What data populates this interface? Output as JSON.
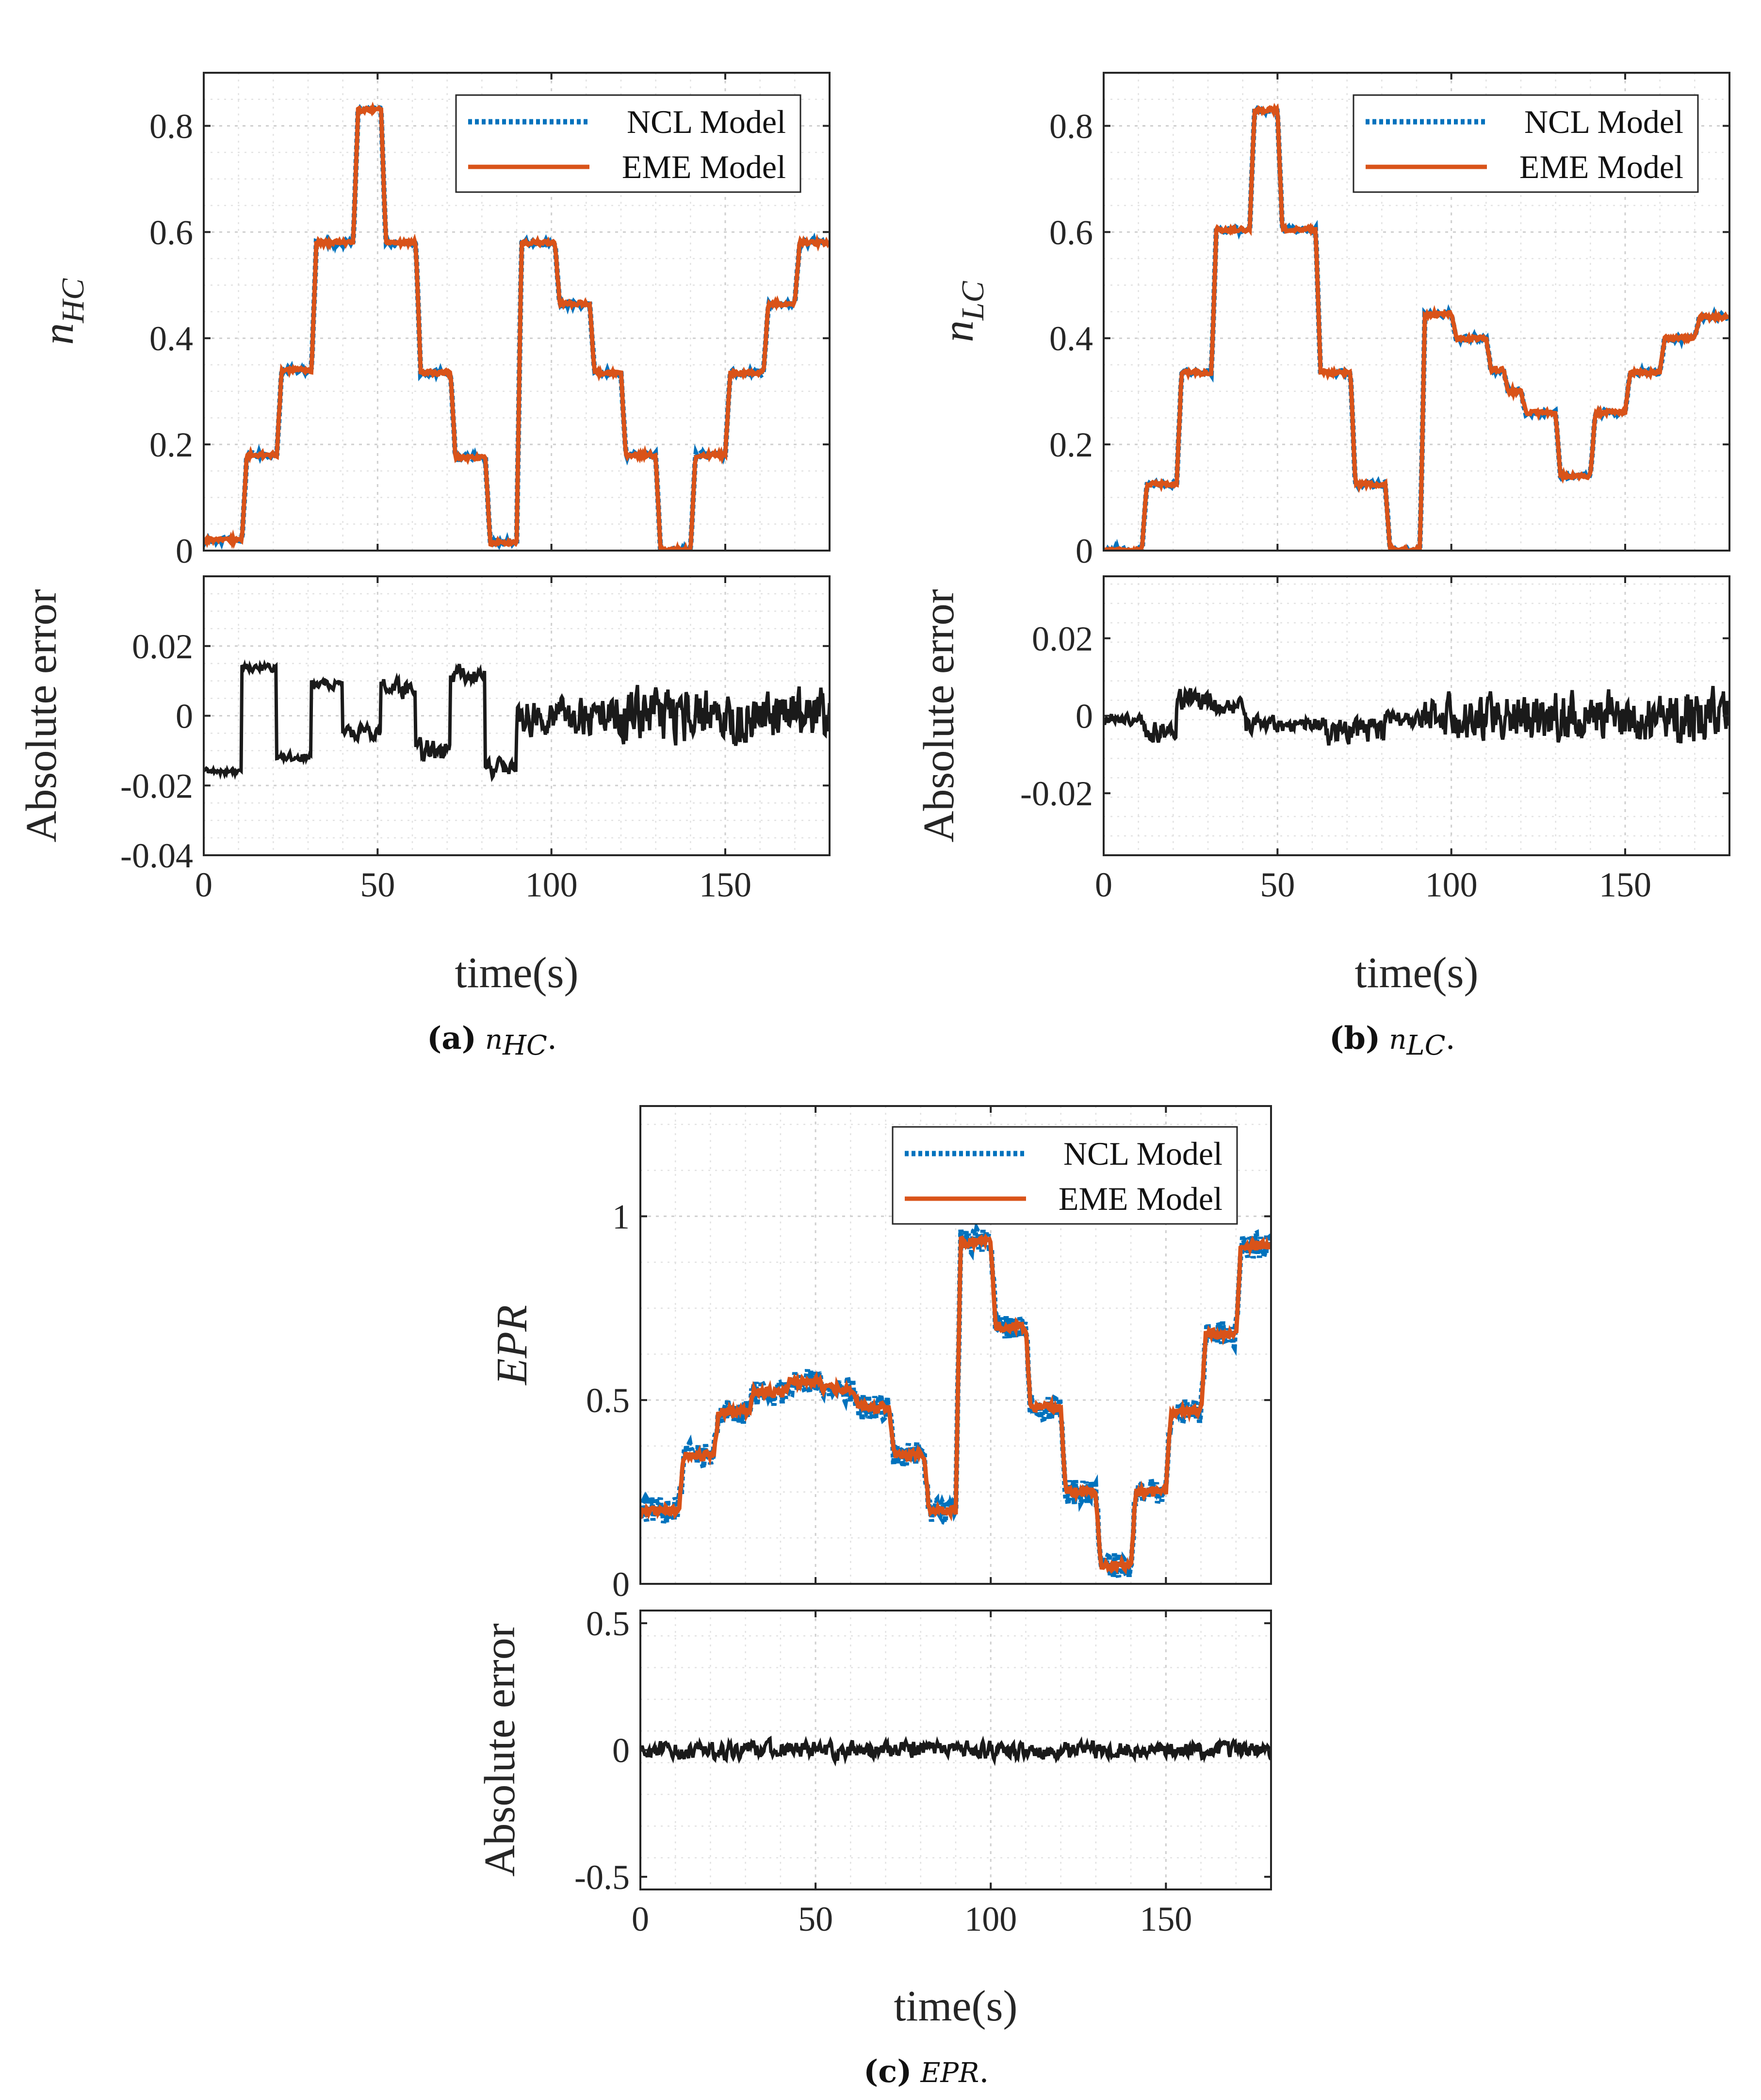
{
  "chart_data": [
    {
      "id": "a",
      "type": "line",
      "caption_label": "(a)",
      "caption_var": "nHC",
      "caption_var_main": "n",
      "caption_var_sub": "HC",
      "caption_tail": ".",
      "ylabel_main": "n",
      "ylabel_sub": "HC",
      "xlabel": "time(s)",
      "xlim": [
        0,
        180
      ],
      "xticks": [
        0,
        50,
        100,
        150
      ],
      "xtick_labels": [
        "0",
        "50",
        "100",
        "150"
      ],
      "top": {
        "ylim": [
          0,
          0.9
        ],
        "yticks": [
          0,
          0.2,
          0.4,
          0.6,
          0.8
        ],
        "ytick_labels": [
          "0",
          "0.2",
          "0.4",
          "0.6",
          "0.8"
        ],
        "noise": 0.004,
        "steps": [
          [
            0,
            0.02
          ],
          [
            11,
            0.18
          ],
          [
            21,
            0.34
          ],
          [
            31,
            0.58
          ],
          [
            43,
            0.83
          ],
          [
            51,
            0.58
          ],
          [
            61,
            0.335
          ],
          [
            71,
            0.175
          ],
          [
            81,
            0.015
          ],
          [
            90,
            0.58
          ],
          [
            101,
            0.465
          ],
          [
            111,
            0.335
          ],
          [
            120,
            0.18
          ],
          [
            130,
            0.0
          ],
          [
            140,
            0.18
          ],
          [
            150,
            0.335
          ],
          [
            161,
            0.465
          ],
          [
            170,
            0.58
          ]
        ],
        "series": [
          {
            "name": "NCL Model",
            "color": "#0072BD",
            "style": "dotted"
          },
          {
            "name": "EME Model",
            "color": "#D95319",
            "style": "solid"
          }
        ]
      },
      "bottom": {
        "ylabel": "Absolute error",
        "ylim": [
          -0.04,
          0.04
        ],
        "yticks": [
          -0.04,
          -0.02,
          0,
          0.02
        ],
        "ytick_labels": [
          "-0.04",
          "-0.02",
          "0",
          "0.02"
        ],
        "color": "#1a1a1a",
        "segments": [
          [
            0,
            -0.016,
            0.0015
          ],
          [
            11,
            0.014,
            0.002
          ],
          [
            21,
            -0.012,
            0.002
          ],
          [
            31,
            0.009,
            0.002
          ],
          [
            40,
            -0.005,
            0.003
          ],
          [
            51,
            0.008,
            0.004
          ],
          [
            61,
            -0.01,
            0.005
          ],
          [
            71,
            0.012,
            0.004
          ],
          [
            81,
            -0.015,
            0.004
          ],
          [
            90,
            0.0,
            0.008
          ],
          [
            120,
            0.0,
            0.011
          ],
          [
            180,
            0.0,
            0.011
          ]
        ]
      }
    },
    {
      "id": "b",
      "type": "line",
      "caption_label": "(b)",
      "caption_var": "nLC",
      "caption_var_main": "n",
      "caption_var_sub": "LC",
      "caption_tail": ".",
      "ylabel_main": "n",
      "ylabel_sub": "LC",
      "xlabel": "time(s)",
      "xlim": [
        0,
        180
      ],
      "xticks": [
        0,
        50,
        100,
        150
      ],
      "xtick_labels": [
        "0",
        "50",
        "100",
        "150"
      ],
      "top": {
        "ylim": [
          0,
          0.9
        ],
        "yticks": [
          0,
          0.2,
          0.4,
          0.6,
          0.8
        ],
        "ytick_labels": [
          "0",
          "0.2",
          "0.4",
          "0.6",
          "0.8"
        ],
        "noise": 0.004,
        "steps": [
          [
            0,
            0.0
          ],
          [
            11,
            0.125
          ],
          [
            21,
            0.335
          ],
          [
            31,
            0.605
          ],
          [
            42,
            0.83
          ],
          [
            50,
            0.605
          ],
          [
            61,
            0.335
          ],
          [
            71,
            0.125
          ],
          [
            81,
            0.0
          ],
          [
            91,
            0.445
          ],
          [
            100,
            0.4
          ],
          [
            110,
            0.34
          ],
          [
            115,
            0.3
          ],
          [
            120,
            0.26
          ],
          [
            130,
            0.14
          ],
          [
            140,
            0.26
          ],
          [
            150,
            0.335
          ],
          [
            160,
            0.4
          ],
          [
            170,
            0.44
          ]
        ],
        "series": [
          {
            "name": "NCL Model",
            "color": "#0072BD",
            "style": "dotted"
          },
          {
            "name": "EME Model",
            "color": "#D95319",
            "style": "solid"
          }
        ]
      },
      "bottom": {
        "ylabel": "Absolute error",
        "ylim": [
          -0.036,
          0.036
        ],
        "yticks": [
          -0.02,
          0,
          0.02
        ],
        "ytick_labels": [
          "-0.02",
          "0",
          "0.02"
        ],
        "color": "#1a1a1a",
        "segments": [
          [
            0,
            -0.001,
            0.002
          ],
          [
            11,
            -0.004,
            0.004
          ],
          [
            21,
            0.004,
            0.004
          ],
          [
            31,
            0.002,
            0.003
          ],
          [
            41,
            -0.002,
            0.003
          ],
          [
            61,
            -0.004,
            0.005
          ],
          [
            81,
            -0.001,
            0.003
          ],
          [
            91,
            0.0,
            0.008
          ],
          [
            120,
            0.0,
            0.01
          ],
          [
            180,
            0.0,
            0.01
          ]
        ]
      }
    },
    {
      "id": "c",
      "type": "line",
      "caption_label": "(c)",
      "caption_var": "EPR",
      "caption_tail": ".",
      "ylabel": "EPR",
      "xlabel": "time(s)",
      "xlim": [
        0,
        180
      ],
      "xticks": [
        0,
        50,
        100,
        150
      ],
      "xtick_labels": [
        "0",
        "50",
        "100",
        "150"
      ],
      "top": {
        "ylim": [
          0,
          1.3
        ],
        "yticks": [
          0,
          0.5,
          1
        ],
        "ytick_labels": [
          "0",
          "0.5",
          "1"
        ],
        "noise": 0.012,
        "ncl_noise": 0.035,
        "steps": [
          [
            0,
            0.2
          ],
          [
            11,
            0.35
          ],
          [
            21,
            0.47
          ],
          [
            31,
            0.52
          ],
          [
            41,
            0.55
          ],
          [
            51,
            0.53
          ],
          [
            61,
            0.48
          ],
          [
            71,
            0.35
          ],
          [
            81,
            0.2
          ],
          [
            90,
            0.93
          ],
          [
            100,
            0.7
          ],
          [
            110,
            0.48
          ],
          [
            120,
            0.25
          ],
          [
            130,
            0.05
          ],
          [
            140,
            0.25
          ],
          [
            150,
            0.47
          ],
          [
            160,
            0.68
          ],
          [
            170,
            0.92
          ]
        ],
        "series": [
          {
            "name": "NCL Model",
            "color": "#0072BD",
            "style": "dotted"
          },
          {
            "name": "EME Model",
            "color": "#D95319",
            "style": "solid"
          }
        ]
      },
      "bottom": {
        "ylabel": "Absolute error",
        "ylim": [
          -0.55,
          0.55
        ],
        "yticks": [
          -0.5,
          0,
          0.5
        ],
        "ytick_labels": [
          "-0.5",
          "0",
          "0.5"
        ],
        "color": "#1a1a1a",
        "segments": [
          [
            0,
            0.0,
            0.05
          ],
          [
            180,
            0.0,
            0.05
          ]
        ]
      }
    }
  ]
}
